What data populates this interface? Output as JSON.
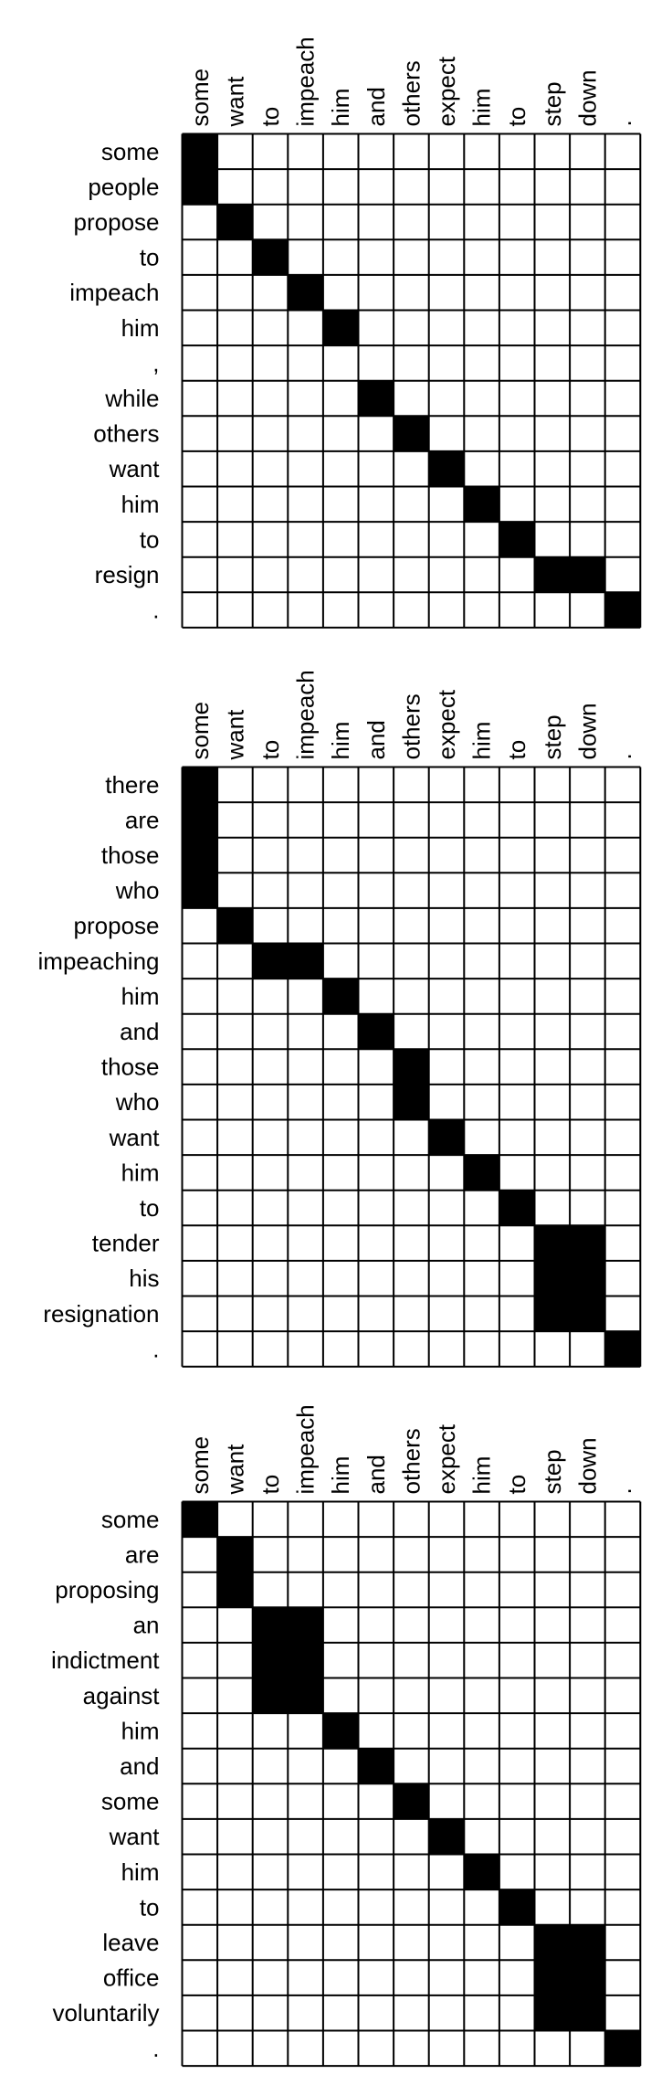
{
  "panels": [
    {
      "columns": [
        "some",
        "want",
        "to",
        "impeach",
        "him",
        "and",
        "others",
        "expect",
        "him",
        "to",
        "step",
        "down",
        "."
      ],
      "rows": [
        {
          "label": "some",
          "cells": [
            1,
            0,
            0,
            0,
            0,
            0,
            0,
            0,
            0,
            0,
            0,
            0,
            0
          ]
        },
        {
          "label": "people",
          "cells": [
            1,
            0,
            0,
            0,
            0,
            0,
            0,
            0,
            0,
            0,
            0,
            0,
            0
          ]
        },
        {
          "label": "propose",
          "cells": [
            0,
            1,
            0,
            0,
            0,
            0,
            0,
            0,
            0,
            0,
            0,
            0,
            0
          ]
        },
        {
          "label": "to",
          "cells": [
            0,
            0,
            1,
            0,
            0,
            0,
            0,
            0,
            0,
            0,
            0,
            0,
            0
          ]
        },
        {
          "label": "impeach",
          "cells": [
            0,
            0,
            0,
            1,
            0,
            0,
            0,
            0,
            0,
            0,
            0,
            0,
            0
          ]
        },
        {
          "label": "him",
          "cells": [
            0,
            0,
            0,
            0,
            1,
            0,
            0,
            0,
            0,
            0,
            0,
            0,
            0
          ]
        },
        {
          "label": ",",
          "cells": [
            0,
            0,
            0,
            0,
            0,
            0,
            0,
            0,
            0,
            0,
            0,
            0,
            0
          ]
        },
        {
          "label": "while",
          "cells": [
            0,
            0,
            0,
            0,
            0,
            1,
            0,
            0,
            0,
            0,
            0,
            0,
            0
          ]
        },
        {
          "label": "others",
          "cells": [
            0,
            0,
            0,
            0,
            0,
            0,
            1,
            0,
            0,
            0,
            0,
            0,
            0
          ]
        },
        {
          "label": "want",
          "cells": [
            0,
            0,
            0,
            0,
            0,
            0,
            0,
            1,
            0,
            0,
            0,
            0,
            0
          ]
        },
        {
          "label": "him",
          "cells": [
            0,
            0,
            0,
            0,
            0,
            0,
            0,
            0,
            1,
            0,
            0,
            0,
            0
          ]
        },
        {
          "label": "to",
          "cells": [
            0,
            0,
            0,
            0,
            0,
            0,
            0,
            0,
            0,
            1,
            0,
            0,
            0
          ]
        },
        {
          "label": "resign",
          "cells": [
            0,
            0,
            0,
            0,
            0,
            0,
            0,
            0,
            0,
            0,
            1,
            1,
            0
          ]
        },
        {
          "label": ".",
          "cells": [
            0,
            0,
            0,
            0,
            0,
            0,
            0,
            0,
            0,
            0,
            0,
            0,
            1
          ]
        }
      ]
    },
    {
      "columns": [
        "some",
        "want",
        "to",
        "impeach",
        "him",
        "and",
        "others",
        "expect",
        "him",
        "to",
        "step",
        "down",
        "."
      ],
      "rows": [
        {
          "label": "there",
          "cells": [
            1,
            0,
            0,
            0,
            0,
            0,
            0,
            0,
            0,
            0,
            0,
            0,
            0
          ]
        },
        {
          "label": "are",
          "cells": [
            1,
            0,
            0,
            0,
            0,
            0,
            0,
            0,
            0,
            0,
            0,
            0,
            0
          ]
        },
        {
          "label": "those",
          "cells": [
            1,
            0,
            0,
            0,
            0,
            0,
            0,
            0,
            0,
            0,
            0,
            0,
            0
          ]
        },
        {
          "label": "who",
          "cells": [
            1,
            0,
            0,
            0,
            0,
            0,
            0,
            0,
            0,
            0,
            0,
            0,
            0
          ]
        },
        {
          "label": "propose",
          "cells": [
            0,
            1,
            0,
            0,
            0,
            0,
            0,
            0,
            0,
            0,
            0,
            0,
            0
          ]
        },
        {
          "label": "impeaching",
          "cells": [
            0,
            0,
            1,
            1,
            0,
            0,
            0,
            0,
            0,
            0,
            0,
            0,
            0
          ]
        },
        {
          "label": "him",
          "cells": [
            0,
            0,
            0,
            0,
            1,
            0,
            0,
            0,
            0,
            0,
            0,
            0,
            0
          ]
        },
        {
          "label": "and",
          "cells": [
            0,
            0,
            0,
            0,
            0,
            1,
            0,
            0,
            0,
            0,
            0,
            0,
            0
          ]
        },
        {
          "label": "those",
          "cells": [
            0,
            0,
            0,
            0,
            0,
            0,
            1,
            0,
            0,
            0,
            0,
            0,
            0
          ]
        },
        {
          "label": "who",
          "cells": [
            0,
            0,
            0,
            0,
            0,
            0,
            1,
            0,
            0,
            0,
            0,
            0,
            0
          ]
        },
        {
          "label": "want",
          "cells": [
            0,
            0,
            0,
            0,
            0,
            0,
            0,
            1,
            0,
            0,
            0,
            0,
            0
          ]
        },
        {
          "label": "him",
          "cells": [
            0,
            0,
            0,
            0,
            0,
            0,
            0,
            0,
            1,
            0,
            0,
            0,
            0
          ]
        },
        {
          "label": "to",
          "cells": [
            0,
            0,
            0,
            0,
            0,
            0,
            0,
            0,
            0,
            1,
            0,
            0,
            0
          ]
        },
        {
          "label": "tender",
          "cells": [
            0,
            0,
            0,
            0,
            0,
            0,
            0,
            0,
            0,
            0,
            1,
            1,
            0
          ]
        },
        {
          "label": "his",
          "cells": [
            0,
            0,
            0,
            0,
            0,
            0,
            0,
            0,
            0,
            0,
            1,
            1,
            0
          ]
        },
        {
          "label": "resignation",
          "cells": [
            0,
            0,
            0,
            0,
            0,
            0,
            0,
            0,
            0,
            0,
            1,
            1,
            0
          ]
        },
        {
          "label": ".",
          "cells": [
            0,
            0,
            0,
            0,
            0,
            0,
            0,
            0,
            0,
            0,
            0,
            0,
            1
          ]
        }
      ]
    },
    {
      "columns": [
        "some",
        "want",
        "to",
        "impeach",
        "him",
        "and",
        "others",
        "expect",
        "him",
        "to",
        "step",
        "down",
        "."
      ],
      "rows": [
        {
          "label": "some",
          "cells": [
            1,
            0,
            0,
            0,
            0,
            0,
            0,
            0,
            0,
            0,
            0,
            0,
            0
          ]
        },
        {
          "label": "are",
          "cells": [
            0,
            1,
            0,
            0,
            0,
            0,
            0,
            0,
            0,
            0,
            0,
            0,
            0
          ]
        },
        {
          "label": "proposing",
          "cells": [
            0,
            1,
            0,
            0,
            0,
            0,
            0,
            0,
            0,
            0,
            0,
            0,
            0
          ]
        },
        {
          "label": "an",
          "cells": [
            0,
            0,
            1,
            1,
            0,
            0,
            0,
            0,
            0,
            0,
            0,
            0,
            0
          ]
        },
        {
          "label": "indictment",
          "cells": [
            0,
            0,
            1,
            1,
            0,
            0,
            0,
            0,
            0,
            0,
            0,
            0,
            0
          ]
        },
        {
          "label": "against",
          "cells": [
            0,
            0,
            1,
            1,
            0,
            0,
            0,
            0,
            0,
            0,
            0,
            0,
            0
          ]
        },
        {
          "label": "him",
          "cells": [
            0,
            0,
            0,
            0,
            1,
            0,
            0,
            0,
            0,
            0,
            0,
            0,
            0
          ]
        },
        {
          "label": "and",
          "cells": [
            0,
            0,
            0,
            0,
            0,
            1,
            0,
            0,
            0,
            0,
            0,
            0,
            0
          ]
        },
        {
          "label": "some",
          "cells": [
            0,
            0,
            0,
            0,
            0,
            0,
            1,
            0,
            0,
            0,
            0,
            0,
            0
          ]
        },
        {
          "label": "want",
          "cells": [
            0,
            0,
            0,
            0,
            0,
            0,
            0,
            1,
            0,
            0,
            0,
            0,
            0
          ]
        },
        {
          "label": "him",
          "cells": [
            0,
            0,
            0,
            0,
            0,
            0,
            0,
            0,
            1,
            0,
            0,
            0,
            0
          ]
        },
        {
          "label": "to",
          "cells": [
            0,
            0,
            0,
            0,
            0,
            0,
            0,
            0,
            0,
            1,
            0,
            0,
            0
          ]
        },
        {
          "label": "leave",
          "cells": [
            0,
            0,
            0,
            0,
            0,
            0,
            0,
            0,
            0,
            0,
            1,
            1,
            0
          ]
        },
        {
          "label": "office",
          "cells": [
            0,
            0,
            0,
            0,
            0,
            0,
            0,
            0,
            0,
            0,
            1,
            1,
            0
          ]
        },
        {
          "label": "voluntarily",
          "cells": [
            0,
            0,
            0,
            0,
            0,
            0,
            0,
            0,
            0,
            0,
            1,
            1,
            0
          ]
        },
        {
          "label": ".",
          "cells": [
            0,
            0,
            0,
            0,
            0,
            0,
            0,
            0,
            0,
            0,
            0,
            0,
            1
          ]
        }
      ]
    }
  ],
  "colors": {
    "filled": "#000000",
    "empty": "#ffffff",
    "grid": "#000000",
    "text": "#000000"
  }
}
